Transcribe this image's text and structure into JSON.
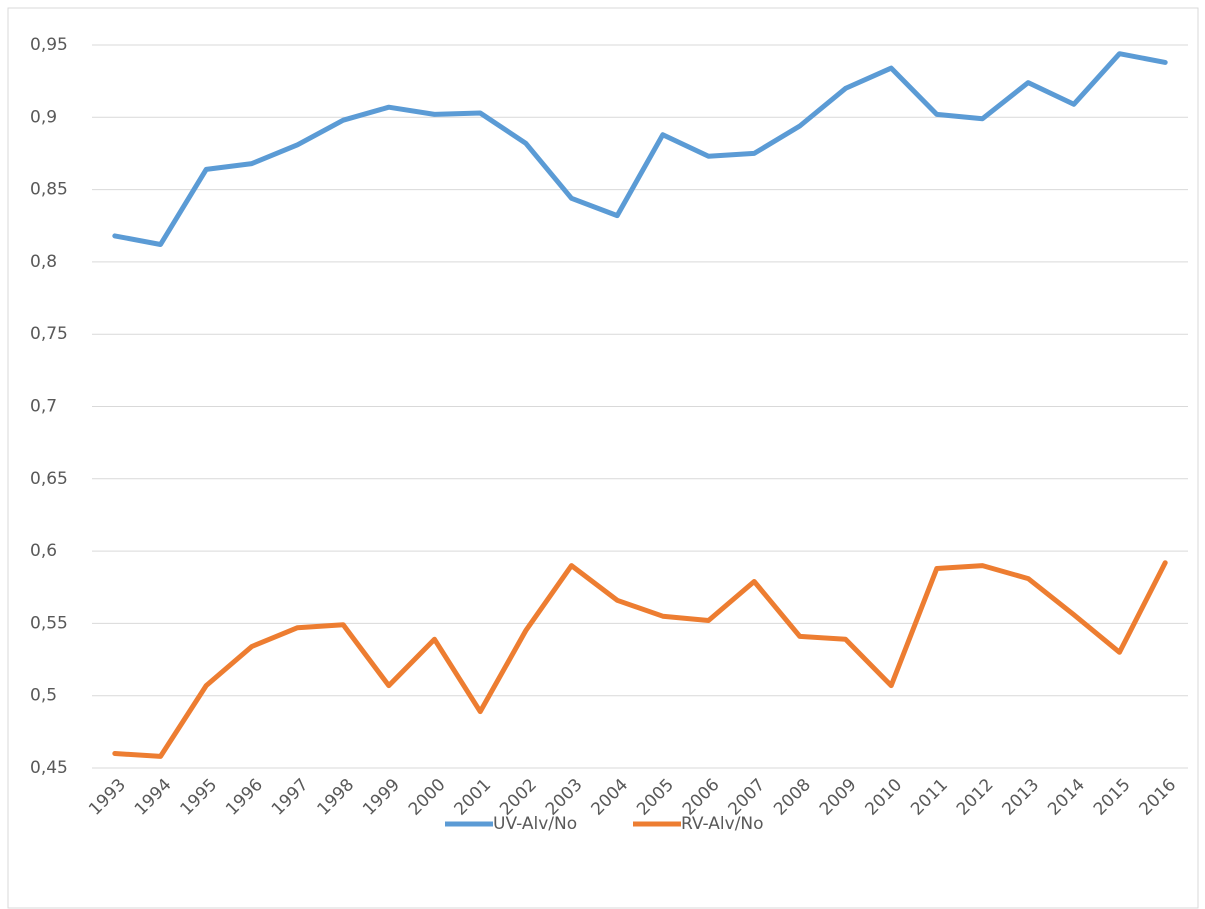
{
  "chart_data": {
    "type": "line",
    "categories": [
      "1993",
      "1994",
      "1995",
      "1996",
      "1997",
      "1998",
      "1999",
      "2000",
      "2001",
      "2002",
      "2003",
      "2004",
      "2005",
      "2006",
      "2007",
      "2008",
      "2009",
      "2010",
      "2011",
      "2012",
      "2013",
      "2014",
      "2015",
      "2016"
    ],
    "series": [
      {
        "name": "UV-Alv/No",
        "color": "#5b9bd5",
        "values": [
          0.818,
          0.812,
          0.864,
          0.868,
          0.881,
          0.898,
          0.907,
          0.902,
          0.903,
          0.882,
          0.844,
          0.832,
          0.888,
          0.873,
          0.875,
          0.894,
          0.92,
          0.934,
          0.902,
          0.899,
          0.924,
          0.909,
          0.944,
          0.938
        ]
      },
      {
        "name": "RV-Alv/No",
        "color": "#ed7d31",
        "values": [
          0.46,
          0.458,
          0.507,
          0.534,
          0.547,
          0.549,
          0.507,
          0.539,
          0.489,
          0.545,
          0.59,
          0.566,
          0.555,
          0.552,
          0.579,
          0.541,
          0.539,
          0.507,
          0.588,
          0.59,
          0.581,
          0.556,
          0.53,
          0.592
        ]
      }
    ],
    "ylim": [
      0.45,
      0.95
    ],
    "yticks": [
      {
        "value": 0.45,
        "label": "0,45"
      },
      {
        "value": 0.5,
        "label": "0,5"
      },
      {
        "value": 0.55,
        "label": "0,55"
      },
      {
        "value": 0.6,
        "label": "0,6"
      },
      {
        "value": 0.65,
        "label": "0,65"
      },
      {
        "value": 0.7,
        "label": "0,7"
      },
      {
        "value": 0.75,
        "label": "0,75"
      },
      {
        "value": 0.8,
        "label": "0,8"
      },
      {
        "value": 0.85,
        "label": "0,85"
      },
      {
        "value": 0.9,
        "label": "0,9"
      },
      {
        "value": 0.95,
        "label": "0,95"
      }
    ],
    "grid": true,
    "legend": "bottom"
  }
}
